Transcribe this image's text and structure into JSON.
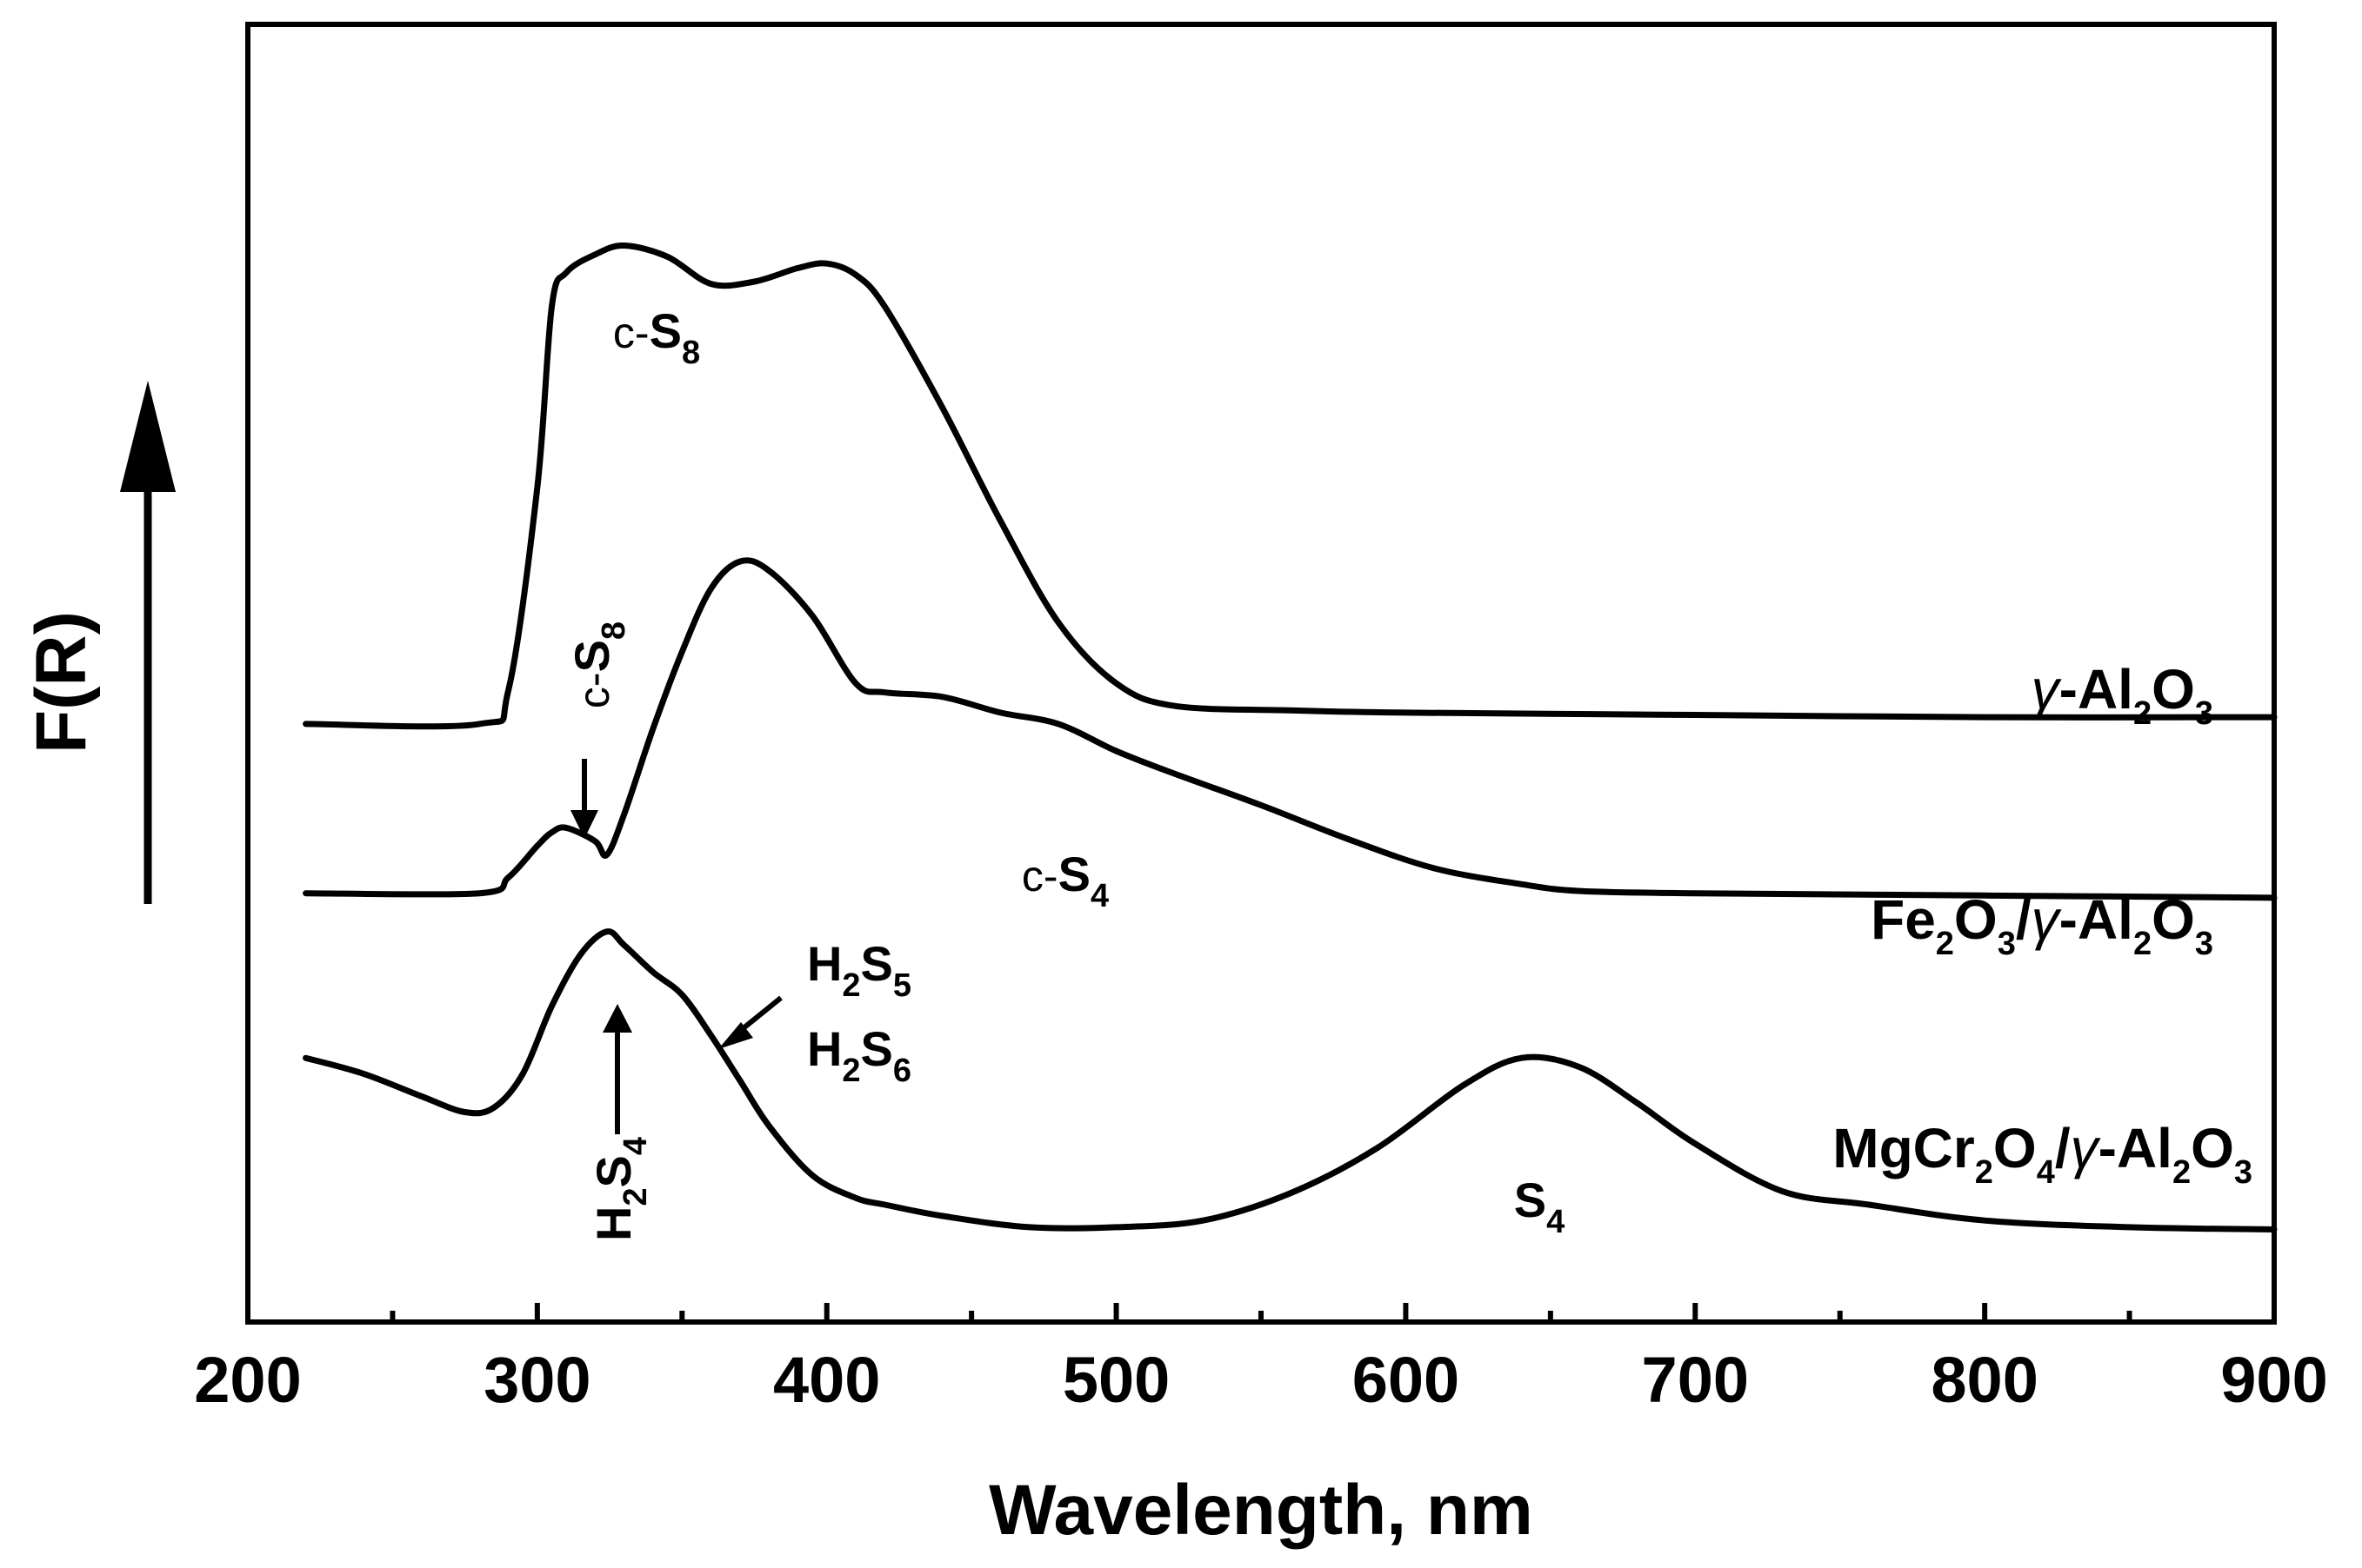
{
  "chart_data": {
    "type": "line",
    "title": "",
    "xlabel": "Wavelength, nm",
    "ylabel": "F(R)",
    "xlim": [
      200,
      900
    ],
    "x_ticks": [
      200,
      300,
      400,
      500,
      600,
      700,
      800,
      900
    ],
    "y_ticks": [],
    "grid": false,
    "series": [
      {
        "name": "γ-Al2O3",
        "label_parts": [
          {
            "t": "γ",
            "sub": false,
            "italic": true
          },
          {
            "t": "-Al",
            "sub": false
          },
          {
            "t": "2",
            "sub": true
          },
          {
            "t": "O",
            "sub": false
          },
          {
            "t": "3",
            "sub": true
          }
        ],
        "x": [
          220,
          280,
          290,
          300,
          305,
          310,
          320,
          330,
          345,
          360,
          375,
          390,
          400,
          410,
          420,
          440,
          460,
          480,
          500,
          520,
          560,
          600,
          700,
          800,
          900
        ],
        "y": [
          1.1,
          1.1,
          1.25,
          2.15,
          2.95,
          3.1,
          3.18,
          3.22,
          3.17,
          3.05,
          3.06,
          3.12,
          3.14,
          3.09,
          2.95,
          2.5,
          2.0,
          1.55,
          1.28,
          1.18,
          1.16,
          1.15,
          1.14,
          1.13,
          1.13
        ]
      },
      {
        "name": "Fe2O3/γ-Al2O3",
        "label_parts": [
          {
            "t": "Fe",
            "sub": false
          },
          {
            "t": "2",
            "sub": true
          },
          {
            "t": "O",
            "sub": false
          },
          {
            "t": "3",
            "sub": true
          },
          {
            "t": "/",
            "sub": false
          },
          {
            "t": "γ",
            "sub": false,
            "italic": true
          },
          {
            "t": "-Al",
            "sub": false
          },
          {
            "t": "2",
            "sub": true
          },
          {
            "t": "O",
            "sub": false
          },
          {
            "t": "3",
            "sub": true
          }
        ],
        "x": [
          220,
          280,
          290,
          300,
          305,
          310,
          320,
          324,
          330,
          340,
          350,
          360,
          370,
          380,
          395,
          410,
          420,
          440,
          460,
          480,
          500,
          520,
          550,
          580,
          610,
          640,
          660,
          700,
          800,
          900
        ],
        "y": [
          0.35,
          0.35,
          0.42,
          0.56,
          0.62,
          0.64,
          0.58,
          0.52,
          0.7,
          1.08,
          1.42,
          1.7,
          1.82,
          1.78,
          1.58,
          1.28,
          1.24,
          1.22,
          1.15,
          1.1,
          0.98,
          0.88,
          0.74,
          0.59,
          0.46,
          0.39,
          0.36,
          0.35,
          0.34,
          0.33
        ]
      },
      {
        "name": "MgCr2O4/γ-Al2O3",
        "label_parts": [
          {
            "t": "MgCr",
            "sub": false
          },
          {
            "t": "2",
            "sub": true
          },
          {
            "t": "O",
            "sub": false
          },
          {
            "t": "4",
            "sub": true
          },
          {
            "t": "/",
            "sub": false
          },
          {
            "t": "γ",
            "sub": false,
            "italic": true
          },
          {
            "t": "-Al",
            "sub": false
          },
          {
            "t": "2",
            "sub": true
          },
          {
            "t": "O",
            "sub": false
          },
          {
            "t": "3",
            "sub": true
          }
        ],
        "x": [
          220,
          240,
          260,
          275,
          285,
          295,
          305,
          315,
          324,
          330,
          340,
          350,
          360,
          370,
          380,
          395,
          410,
          420,
          440,
          470,
          500,
          530,
          560,
          590,
          620,
          640,
          660,
          680,
          700,
          730,
          760,
          800,
          850,
          900
        ],
        "y": [
          -0.38,
          -0.45,
          -0.55,
          -0.62,
          -0.6,
          -0.45,
          -0.15,
          0.08,
          0.18,
          0.12,
          0.0,
          -0.1,
          -0.28,
          -0.48,
          -0.68,
          -0.9,
          -1.0,
          -1.03,
          -1.08,
          -1.13,
          -1.13,
          -1.1,
          -0.98,
          -0.78,
          -0.5,
          -0.38,
          -0.42,
          -0.58,
          -0.76,
          -0.97,
          -1.03,
          -1.1,
          -1.13,
          -1.14
        ]
      }
    ],
    "annotations": [
      {
        "id": "cs8-upper",
        "parts": [
          {
            "t": "c-",
            "sub": false,
            "small": true
          },
          {
            "t": "S",
            "sub": false
          },
          {
            "t": "8",
            "sub": true
          }
        ]
      },
      {
        "id": "cs8-fe",
        "parts": [
          {
            "t": "c-",
            "sub": false,
            "small": true
          },
          {
            "t": "S",
            "sub": false
          },
          {
            "t": "8",
            "sub": true
          }
        ]
      },
      {
        "id": "cs4-fe",
        "parts": [
          {
            "t": "c-",
            "sub": false,
            "small": true
          },
          {
            "t": "S",
            "sub": false
          },
          {
            "t": "4",
            "sub": true
          }
        ]
      },
      {
        "id": "h2s5",
        "parts": [
          {
            "t": "H",
            "sub": false
          },
          {
            "t": "2",
            "sub": true
          },
          {
            "t": "S",
            "sub": false
          },
          {
            "t": "5",
            "sub": true
          }
        ]
      },
      {
        "id": "h2s6",
        "parts": [
          {
            "t": "H",
            "sub": false
          },
          {
            "t": "2",
            "sub": true
          },
          {
            "t": "S",
            "sub": false
          },
          {
            "t": "6",
            "sub": true
          }
        ]
      },
      {
        "id": "h2s4",
        "parts": [
          {
            "t": "H",
            "sub": false
          },
          {
            "t": "2",
            "sub": true
          },
          {
            "t": "S",
            "sub": false
          },
          {
            "t": "4",
            "sub": true
          }
        ]
      },
      {
        "id": "s4",
        "parts": [
          {
            "t": "S",
            "sub": false
          },
          {
            "t": "4",
            "sub": true
          }
        ]
      }
    ],
    "ylim": [
      -1.55,
      4.2
    ]
  }
}
